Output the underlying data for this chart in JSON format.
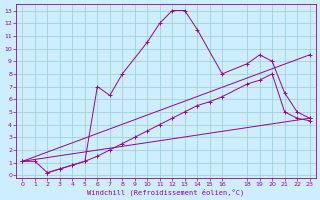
{
  "title": "",
  "xlabel": "Windchill (Refroidissement éolien,°C)",
  "bg_color": "#cceeff",
  "line_color": "#990099",
  "grid_color": "#99cccc",
  "xlim": [
    -0.5,
    23.5
  ],
  "ylim": [
    -0.2,
    13.5
  ],
  "xticks": [
    0,
    1,
    2,
    3,
    4,
    5,
    6,
    7,
    8,
    9,
    10,
    11,
    12,
    13,
    14,
    15,
    16,
    18,
    19,
    20,
    21,
    22,
    23
  ],
  "yticks": [
    0,
    1,
    2,
    3,
    4,
    5,
    6,
    7,
    8,
    9,
    10,
    11,
    12,
    13
  ],
  "line1_x": [
    0,
    1,
    2,
    3,
    4,
    5,
    6,
    7,
    8,
    10,
    11,
    12,
    13,
    14,
    16,
    18,
    19,
    20,
    21,
    22,
    23
  ],
  "line1_y": [
    1.1,
    1.1,
    0.2,
    0.5,
    0.8,
    1.1,
    7.0,
    6.3,
    8.0,
    10.5,
    12.0,
    13.0,
    13.0,
    11.5,
    8.0,
    8.8,
    9.5,
    9.0,
    6.5,
    5.0,
    4.5
  ],
  "line2_x": [
    2,
    3,
    4,
    5,
    6,
    7,
    8,
    9,
    10,
    11,
    12,
    13,
    14,
    15,
    16,
    18,
    19,
    20,
    21,
    22,
    23
  ],
  "line2_y": [
    0.2,
    0.5,
    0.8,
    1.1,
    1.5,
    2.0,
    2.5,
    3.0,
    3.5,
    4.0,
    4.5,
    5.0,
    5.5,
    5.8,
    6.2,
    7.2,
    7.5,
    8.0,
    5.0,
    4.5,
    4.3
  ],
  "line3_x": [
    0,
    23
  ],
  "line3_y": [
    1.1,
    4.5
  ],
  "line4_x": [
    0,
    23
  ],
  "line4_y": [
    1.1,
    9.5
  ],
  "figsize": [
    3.2,
    2.0
  ],
  "dpi": 100
}
